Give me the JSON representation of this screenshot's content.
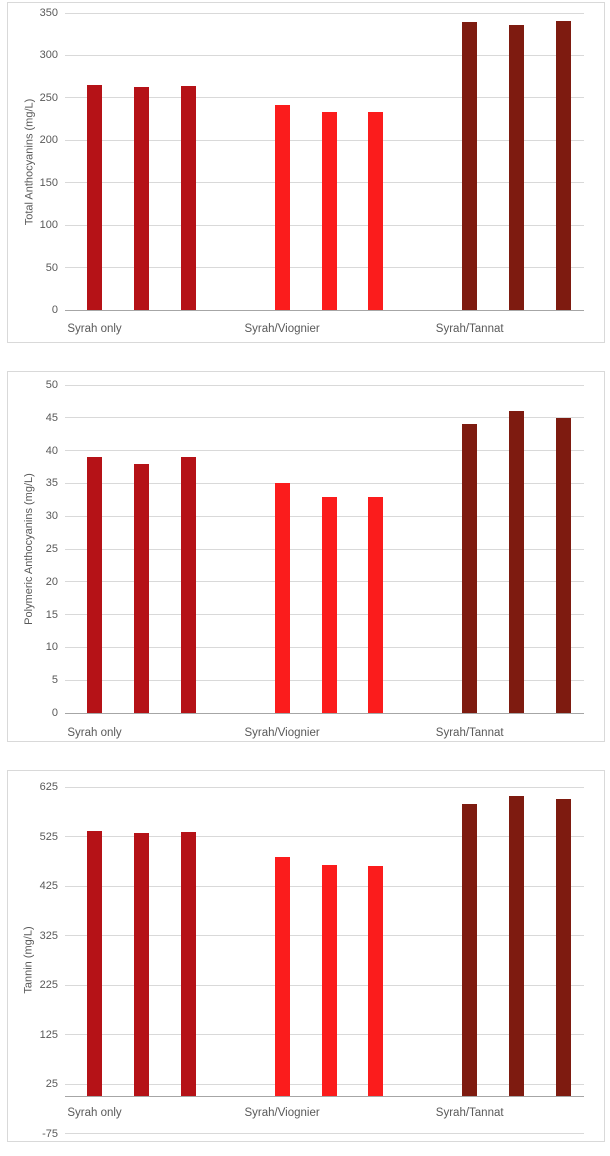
{
  "page": {
    "background": "#ffffff",
    "text_color": "#595959",
    "gridline_color": "#d9d9d9",
    "frame_color": "#d9d9d9",
    "axis_line_color": "#a6a6a6"
  },
  "chart_data": [
    {
      "type": "bar",
      "title": "",
      "xlabel": "",
      "ylabel": "Total Anthocyanins (mg/L)",
      "categories": [
        "Syrah only",
        "Syrah/Viognier",
        "Syrah/Tannat"
      ],
      "groups": [
        {
          "label": "Syrah only",
          "color": "#b51217",
          "values": [
            265,
            263,
            264
          ]
        },
        {
          "label": "Syrah/Viognier",
          "color": "#fb1c1c",
          "values": [
            242,
            233,
            233
          ]
        },
        {
          "label": "Syrah/Tannat",
          "color": "#7e1b10",
          "values": [
            339,
            336,
            341
          ]
        }
      ],
      "ylim": [
        0,
        350
      ],
      "ytick_step": 50,
      "yticks": [
        0,
        50,
        100,
        150,
        200,
        250,
        300,
        350
      ],
      "bar_baseline": 0,
      "grid": true,
      "legend_position": "none"
    },
    {
      "type": "bar",
      "title": "",
      "xlabel": "",
      "ylabel": "Polymeric Anthocyanins (mg/L)",
      "categories": [
        "Syrah only",
        "Syrah/Viognier",
        "Syrah/Tannat"
      ],
      "groups": [
        {
          "label": "Syrah only",
          "color": "#b51217",
          "values": [
            39,
            38,
            39
          ]
        },
        {
          "label": "Syrah/Viognier",
          "color": "#fb1c1c",
          "values": [
            35,
            33,
            33
          ]
        },
        {
          "label": "Syrah/Tannat",
          "color": "#7e1b10",
          "values": [
            44,
            46,
            45
          ]
        }
      ],
      "ylim": [
        0,
        50
      ],
      "ytick_step": 5,
      "yticks": [
        0,
        5,
        10,
        15,
        20,
        25,
        30,
        35,
        40,
        45,
        50
      ],
      "bar_baseline": 0,
      "grid": true,
      "legend_position": "none"
    },
    {
      "type": "bar",
      "title": "",
      "xlabel": "",
      "ylabel": "Tannin (mg/L)",
      "categories": [
        "Syrah only",
        "Syrah/Viognier",
        "Syrah/Tannat"
      ],
      "groups": [
        {
          "label": "Syrah only",
          "color": "#b51217",
          "values": [
            536,
            532,
            534
          ]
        },
        {
          "label": "Syrah/Viognier",
          "color": "#fb1c1c",
          "values": [
            484,
            467,
            466
          ]
        },
        {
          "label": "Syrah/Tannat",
          "color": "#7e1b10",
          "values": [
            590,
            607,
            601
          ]
        }
      ],
      "ylim": [
        -75,
        625
      ],
      "ytick_step": 100,
      "yticks": [
        -75,
        25,
        125,
        225,
        325,
        425,
        525,
        625
      ],
      "bar_baseline": 0,
      "grid": true,
      "legend_position": "none"
    }
  ]
}
